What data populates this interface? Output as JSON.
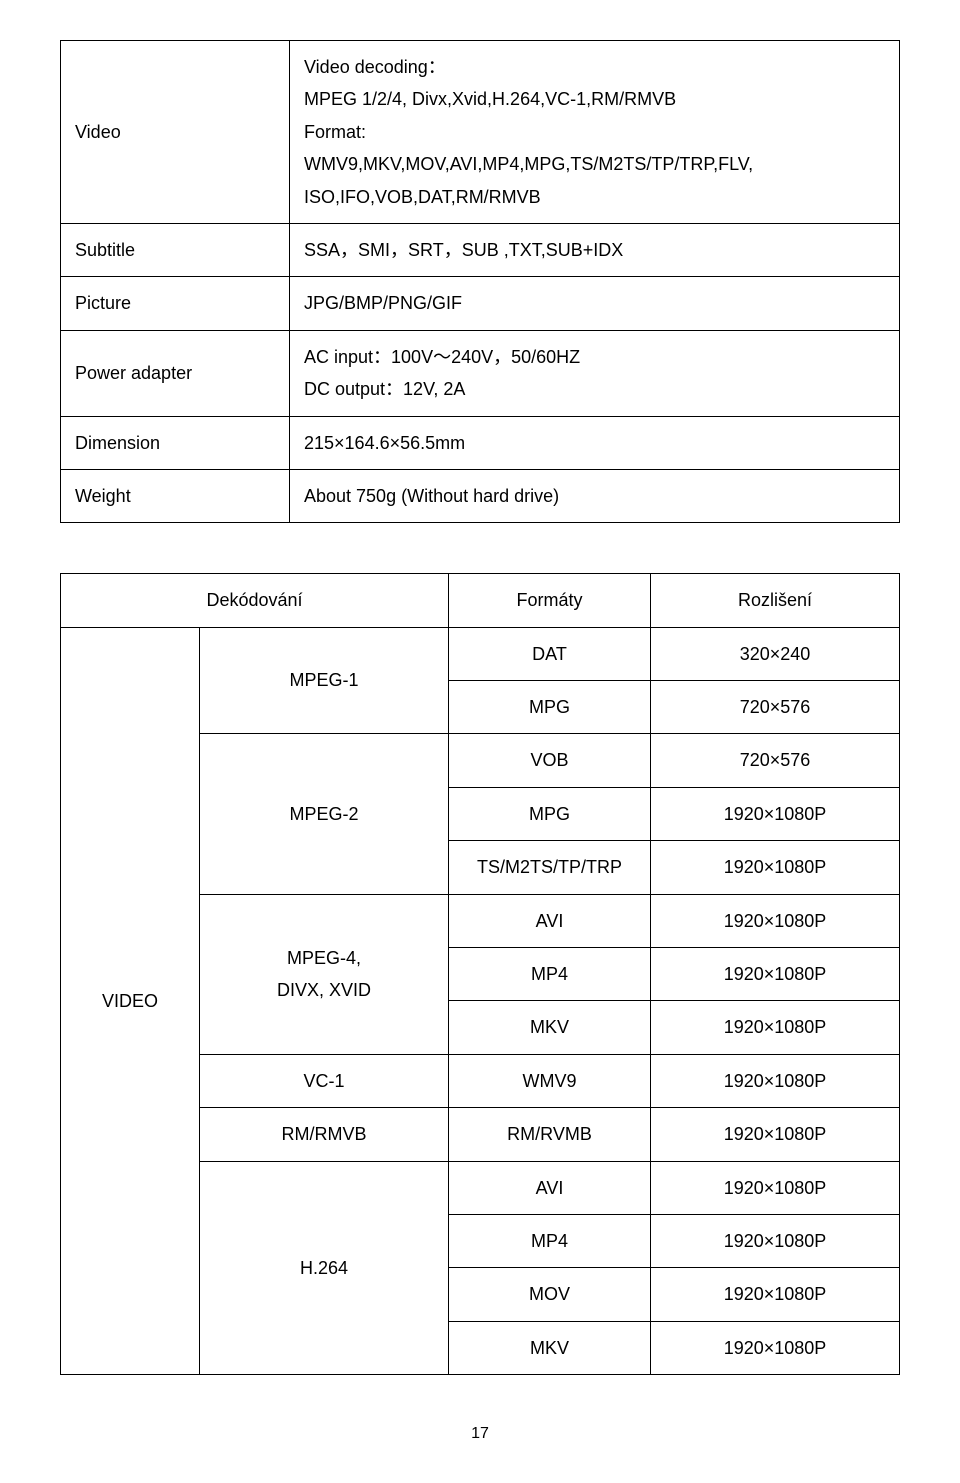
{
  "spec_table": {
    "rows": [
      {
        "label": "Video",
        "value": "Video decoding：\nMPEG 1/2/4, Divx,Xvid,H.264,VC-1,RM/RMVB\nFormat:\nWMV9,MKV,MOV,AVI,MP4,MPG,TS/M2TS/TP/TRP,FLV,\nISO,IFO,VOB,DAT,RM/RMVB"
      },
      {
        "label": "Subtitle",
        "value": "SSA，SMI，SRT，SUB ,TXT,SUB+IDX"
      },
      {
        "label": "Picture",
        "value": "JPG/BMP/PNG/GIF"
      },
      {
        "label": "Power adapter",
        "value": "AC input：100V～240V，50/60HZ\nDC output：12V, 2A"
      },
      {
        "label": "Dimension",
        "value": "215×164.6×56.5mm"
      },
      {
        "label": "Weight",
        "value": "About 750g (Without hard drive)"
      }
    ]
  },
  "format_table": {
    "header": {
      "decode": "Dekódování",
      "format": "Formáty",
      "res": "Rozlišení"
    },
    "category": "VIDEO",
    "groups": [
      {
        "codec": "MPEG-1",
        "rows": [
          {
            "fmt": "DAT",
            "res": "320×240"
          },
          {
            "fmt": "MPG",
            "res": "720×576"
          }
        ]
      },
      {
        "codec": "MPEG-2",
        "rows": [
          {
            "fmt": "VOB",
            "res": "720×576"
          },
          {
            "fmt": "MPG",
            "res": "1920×1080P"
          },
          {
            "fmt": "TS/M2TS/TP/TRP",
            "res": "1920×1080P"
          }
        ]
      },
      {
        "codec": "MPEG-4,\nDIVX, XVID",
        "rows": [
          {
            "fmt": "AVI",
            "res": "1920×1080P"
          },
          {
            "fmt": "MP4",
            "res": "1920×1080P"
          },
          {
            "fmt": "MKV",
            "res": "1920×1080P"
          }
        ]
      },
      {
        "codec": "VC-1",
        "rows": [
          {
            "fmt": "WMV9",
            "res": "1920×1080P"
          }
        ]
      },
      {
        "codec": "RM/RMVB",
        "rows": [
          {
            "fmt": "RM/RVMB",
            "res": "1920×1080P"
          }
        ]
      },
      {
        "codec": "H.264",
        "rows": [
          {
            "fmt": "AVI",
            "res": "1920×1080P"
          },
          {
            "fmt": "MP4",
            "res": "1920×1080P"
          },
          {
            "fmt": "MOV",
            "res": "1920×1080P"
          },
          {
            "fmt": "MKV",
            "res": "1920×1080P"
          }
        ]
      }
    ]
  },
  "page_number": "17"
}
